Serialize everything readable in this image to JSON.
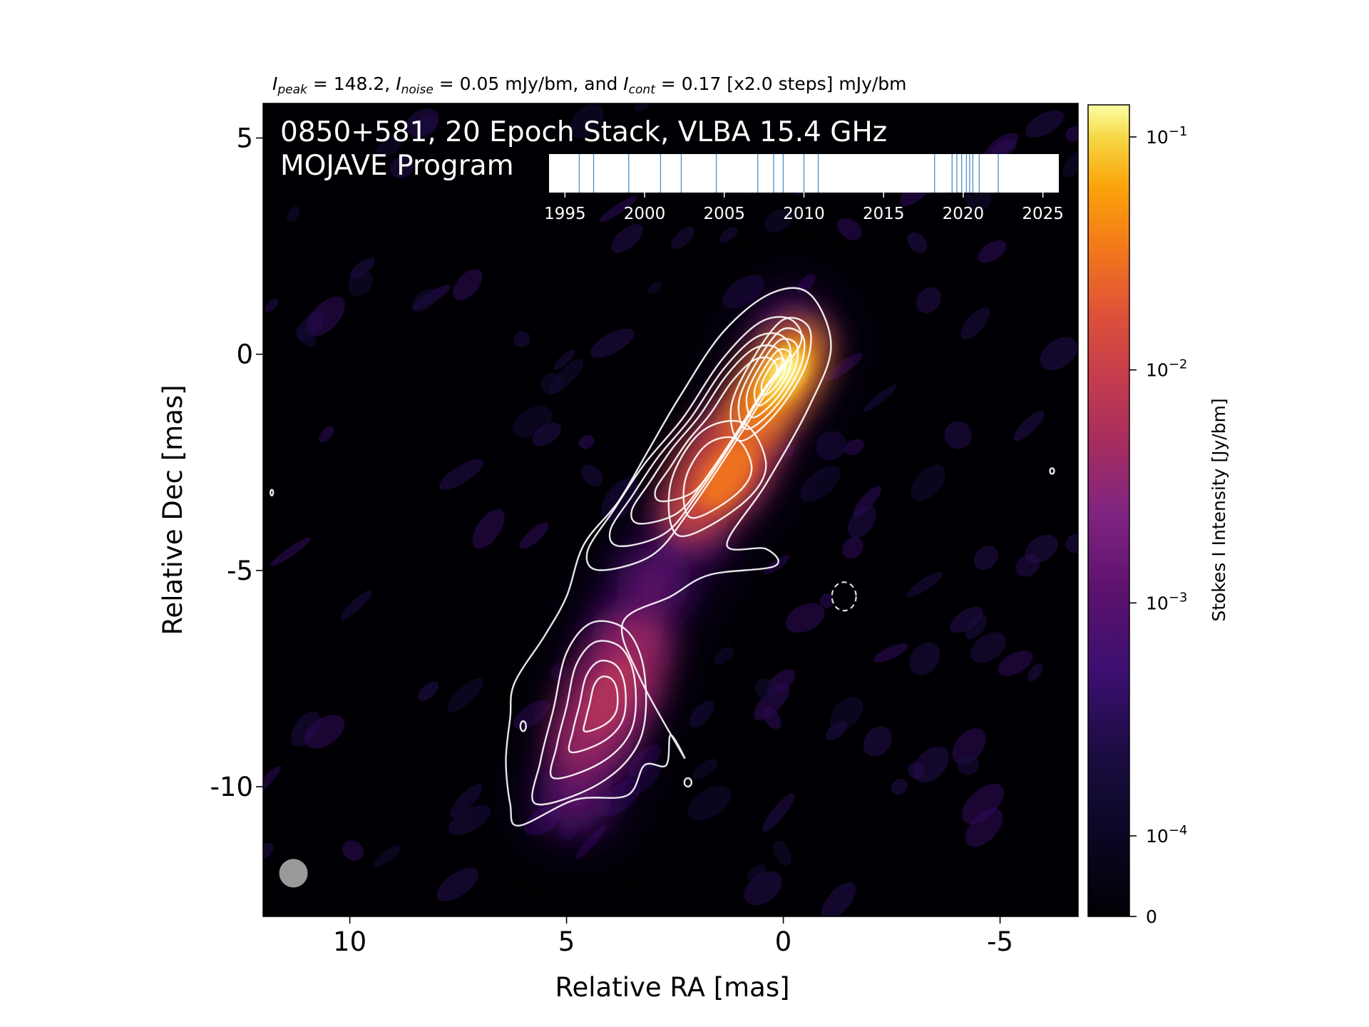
{
  "chart_data": {
    "type": "heatmap",
    "header": {
      "peak_sym": "I",
      "peak_sub": "peak",
      "peak_text": " = 148.2, ",
      "noise_sym": "I",
      "noise_sub": "noise",
      "noise_text": " = 0.05 mJy/bm, and ",
      "cont_sym": "I",
      "cont_sub": "cont",
      "cont_text": " = 0.17 [x2.0 steps] mJy/bm"
    },
    "title_line1": "0850+581, 20 Epoch Stack, VLBA 15.4 GHz",
    "title_line2": "MOJAVE Program",
    "xlabel": "Relative RA [mas]",
    "ylabel": "Relative Dec [mas]",
    "xlim": [
      12.0,
      -6.8
    ],
    "ylim": [
      -13.0,
      5.8
    ],
    "xticks": [
      {
        "value": 10,
        "label": "10"
      },
      {
        "value": 5,
        "label": "5"
      },
      {
        "value": 0,
        "label": "0"
      },
      {
        "value": -5,
        "label": "-5"
      }
    ],
    "yticks": [
      {
        "value": 5,
        "label": "5"
      },
      {
        "value": 0,
        "label": "0"
      },
      {
        "value": -5,
        "label": "-5"
      },
      {
        "value": -10,
        "label": "-10"
      }
    ],
    "colorbar": {
      "label": "Stokes I Intensity [Jy/bm]",
      "scale": "log",
      "ticks": [
        {
          "value": 0,
          "base": "0",
          "exp": ""
        },
        {
          "value": 0.0001,
          "base": "10",
          "exp": "−4"
        },
        {
          "value": 0.001,
          "base": "10",
          "exp": "−3"
        },
        {
          "value": 0.01,
          "base": "10",
          "exp": "−2"
        },
        {
          "value": 0.1,
          "base": "10",
          "exp": "−1"
        }
      ],
      "colormap": "inferno"
    },
    "epoch_timeline": {
      "xlim": [
        1994,
        2026
      ],
      "ticks": [
        1995,
        2000,
        2005,
        2010,
        2015,
        2020,
        2025
      ],
      "epochs": [
        1995.9,
        1996.8,
        1999.0,
        2001.0,
        2002.3,
        2004.5,
        2007.1,
        2008.1,
        2008.7,
        2010.0,
        2010.9,
        2018.2,
        2019.3,
        2019.6,
        2019.9,
        2020.2,
        2020.4,
        2020.6,
        2021.0,
        2022.2
      ],
      "line_color": "#4a90c8"
    },
    "contour_levels_mJy": [
      0.17,
      0.34,
      0.68,
      1.36,
      2.72,
      5.44,
      10.88,
      21.76,
      43.52,
      87.04
    ],
    "contour_color": "#ffffff",
    "beam": {
      "ra": 11.3,
      "dec": -12.0,
      "color": "#999999"
    },
    "components": [
      {
        "ra": 0.0,
        "dec": -0.5,
        "peak_Jy": 0.148
      },
      {
        "ra": 1.3,
        "dec": -2.8,
        "peak_Jy": 0.02
      },
      {
        "ra": 4.0,
        "dec": -7.8,
        "peak_Jy": 0.002
      }
    ]
  }
}
